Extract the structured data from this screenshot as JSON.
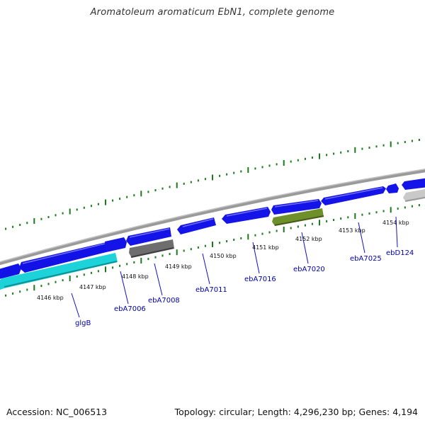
{
  "title": "Aromatoleum aromaticum EbN1, complete genome",
  "footer": {
    "accession": "Accession: NC_006513",
    "summary": "Topology: circular; Length: 4,296,230 bp; Genes: 4,194"
  },
  "colors": {
    "forward_cds": "#1010ee",
    "reverse_cds_cyan": "#19d1d8",
    "reverse_cds_gray": "#707070",
    "reverse_cds_olive": "#6f8f2a",
    "reverse_cds_light": "#c8c8c8",
    "backbone": "#8c8c8c",
    "ticks": "#1a7a1a",
    "gene_label": "#0000aa"
  },
  "tick_labels": [
    {
      "id": "t4146",
      "text": "4146 kbp"
    },
    {
      "id": "t4147",
      "text": "4147 kbp"
    },
    {
      "id": "t4148",
      "text": "4148 kbp"
    },
    {
      "id": "t4149",
      "text": "4149 kbp"
    },
    {
      "id": "t4150",
      "text": "4150 kbp"
    },
    {
      "id": "t4151",
      "text": "4151 kbp"
    },
    {
      "id": "t4152",
      "text": "4152 kbp"
    },
    {
      "id": "t4153",
      "text": "4153 kbp"
    },
    {
      "id": "t4154",
      "text": "4154 kbp"
    }
  ],
  "gene_labels": [
    {
      "id": "glgB",
      "text": "glgB"
    },
    {
      "id": "ebA7006",
      "text": "ebA7006"
    },
    {
      "id": "ebA7008",
      "text": "ebA7008"
    },
    {
      "id": "ebA7011",
      "text": "ebA7011"
    },
    {
      "id": "ebA7016",
      "text": "ebA7016"
    },
    {
      "id": "ebA7020",
      "text": "ebA7020"
    },
    {
      "id": "ebA7025",
      "text": "ebA7025"
    },
    {
      "id": "ebD124",
      "text": "ebD124"
    }
  ]
}
